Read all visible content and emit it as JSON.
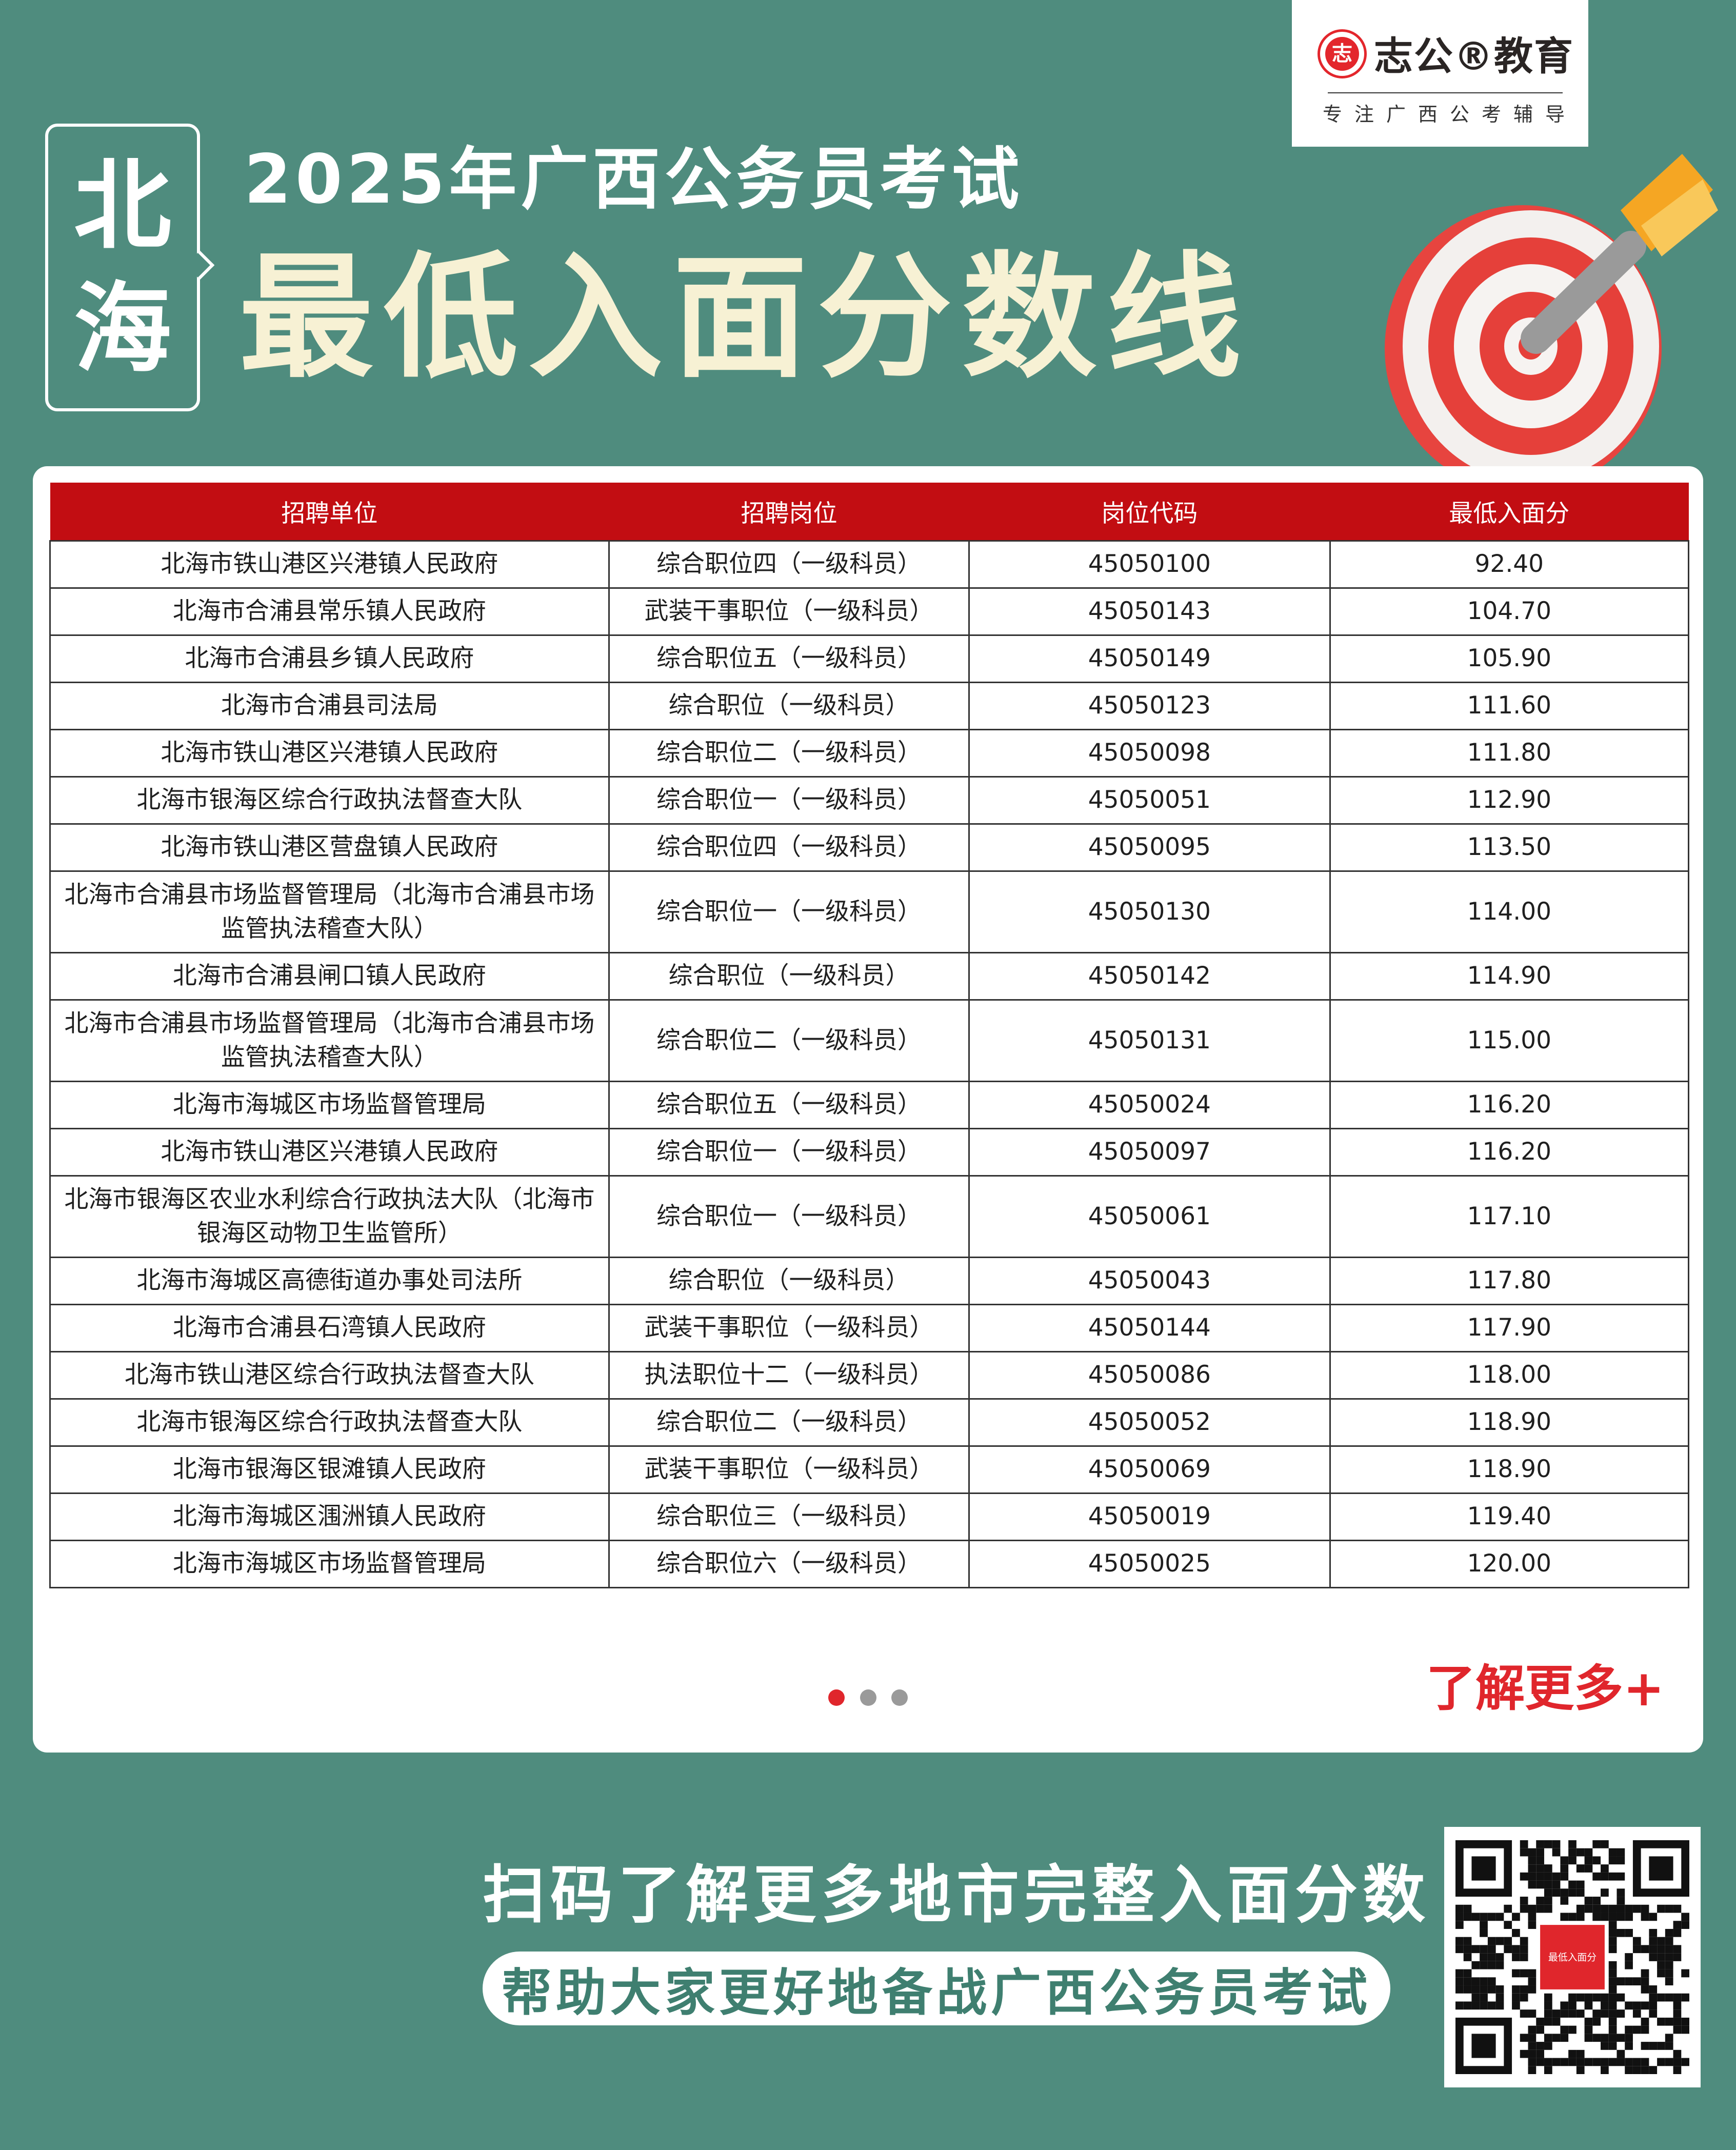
{
  "logo": {
    "seal": "志",
    "brand": "志公®教育",
    "slogan": "专注广西公考辅导"
  },
  "city": [
    "北",
    "海"
  ],
  "title": {
    "line1": "2025年广西公务员考试",
    "line2": "最低入面分数线"
  },
  "table": {
    "headers": [
      "招聘单位",
      "招聘岗位",
      "岗位代码",
      "最低入面分"
    ],
    "rows": [
      [
        "北海市铁山港区兴港镇人民政府",
        "综合职位四（一级科员）",
        "45050100",
        "92.40"
      ],
      [
        "北海市合浦县常乐镇人民政府",
        "武装干事职位（一级科员）",
        "45050143",
        "104.70"
      ],
      [
        "北海市合浦县乡镇人民政府",
        "综合职位五（一级科员）",
        "45050149",
        "105.90"
      ],
      [
        "北海市合浦县司法局",
        "综合职位（一级科员）",
        "45050123",
        "111.60"
      ],
      [
        "北海市铁山港区兴港镇人民政府",
        "综合职位二（一级科员）",
        "45050098",
        "111.80"
      ],
      [
        "北海市银海区综合行政执法督查大队",
        "综合职位一（一级科员）",
        "45050051",
        "112.90"
      ],
      [
        "北海市铁山港区营盘镇人民政府",
        "综合职位四（一级科员）",
        "45050095",
        "113.50"
      ],
      [
        "北海市合浦县市场监督管理局（北海市合浦县市场监管执法稽查大队）",
        "综合职位一（一级科员）",
        "45050130",
        "114.00"
      ],
      [
        "北海市合浦县闸口镇人民政府",
        "综合职位（一级科员）",
        "45050142",
        "114.90"
      ],
      [
        "北海市合浦县市场监督管理局（北海市合浦县市场监管执法稽查大队）",
        "综合职位二（一级科员）",
        "45050131",
        "115.00"
      ],
      [
        "北海市海城区市场监督管理局",
        "综合职位五（一级科员）",
        "45050024",
        "116.20"
      ],
      [
        "北海市铁山港区兴港镇人民政府",
        "综合职位一（一级科员）",
        "45050097",
        "116.20"
      ],
      [
        "北海市银海区农业水利综合行政执法大队（北海市银海区动物卫生监管所）",
        "综合职位一（一级科员）",
        "45050061",
        "117.10"
      ],
      [
        "北海市海城区高德街道办事处司法所",
        "综合职位（一级科员）",
        "45050043",
        "117.80"
      ],
      [
        "北海市合浦县石湾镇人民政府",
        "武装干事职位（一级科员）",
        "45050144",
        "117.90"
      ],
      [
        "北海市铁山港区综合行政执法督查大队",
        "执法职位十二（一级科员）",
        "45050086",
        "118.00"
      ],
      [
        "北海市银海区综合行政执法督查大队",
        "综合职位二（一级科员）",
        "45050052",
        "118.90"
      ],
      [
        "北海市银海区银滩镇人民政府",
        "武装干事职位（一级科员）",
        "45050069",
        "118.90"
      ],
      [
        "北海市海城区涠洲镇人民政府",
        "综合职位三（一级科员）",
        "45050019",
        "119.40"
      ],
      [
        "北海市海城区市场监督管理局",
        "综合职位六（一级科员）",
        "45050025",
        "120.00"
      ]
    ]
  },
  "pagination": {
    "pages": 3,
    "current": 1
  },
  "more_link": "了解更多+",
  "bottom": {
    "line1": "扫码了解更多地市完整入面分数",
    "line2": "帮助大家更好地备战广西公务员考试",
    "qr_label": "最低入面分"
  },
  "colors": {
    "background": "#4f8c7e",
    "header_red": "#c20d12",
    "accent_red": "#e0262c",
    "title_cream": "#f7f1d4"
  }
}
